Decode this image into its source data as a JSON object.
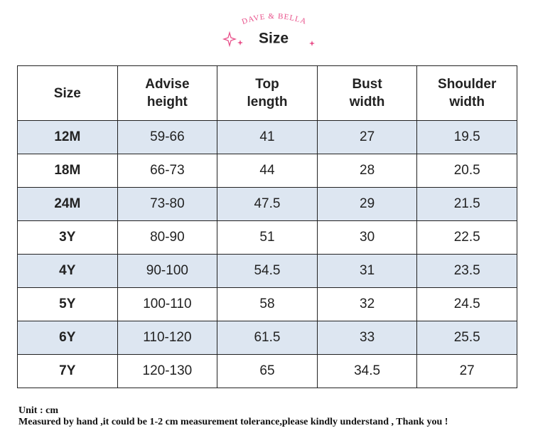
{
  "header": {
    "brand": "DAVE & BELLA",
    "title": "Size"
  },
  "table": {
    "headers": [
      [
        "Size"
      ],
      [
        "Advise",
        "height"
      ],
      [
        "Top",
        "length"
      ],
      [
        "Bust",
        "width"
      ],
      [
        "Shoulder",
        "width"
      ]
    ],
    "rows": [
      [
        "12M",
        "59-66",
        "41",
        "27",
        "19.5"
      ],
      [
        "18M",
        "66-73",
        "44",
        "28",
        "20.5"
      ],
      [
        "24M",
        "73-80",
        "47.5",
        "29",
        "21.5"
      ],
      [
        "3Y",
        "80-90",
        "51",
        "30",
        "22.5"
      ],
      [
        "4Y",
        "90-100",
        "54.5",
        "31",
        "23.5"
      ],
      [
        "5Y",
        "100-110",
        "58",
        "32",
        "24.5"
      ],
      [
        "6Y",
        "110-120",
        "61.5",
        "33",
        "25.5"
      ],
      [
        "7Y",
        "120-130",
        "65",
        "34.5",
        "27"
      ]
    ]
  },
  "notes": [
    "Unit : cm",
    "Measured by hand ,it could be 1-2 cm measurement tolerance,please kindly understand , Thank you !"
  ]
}
